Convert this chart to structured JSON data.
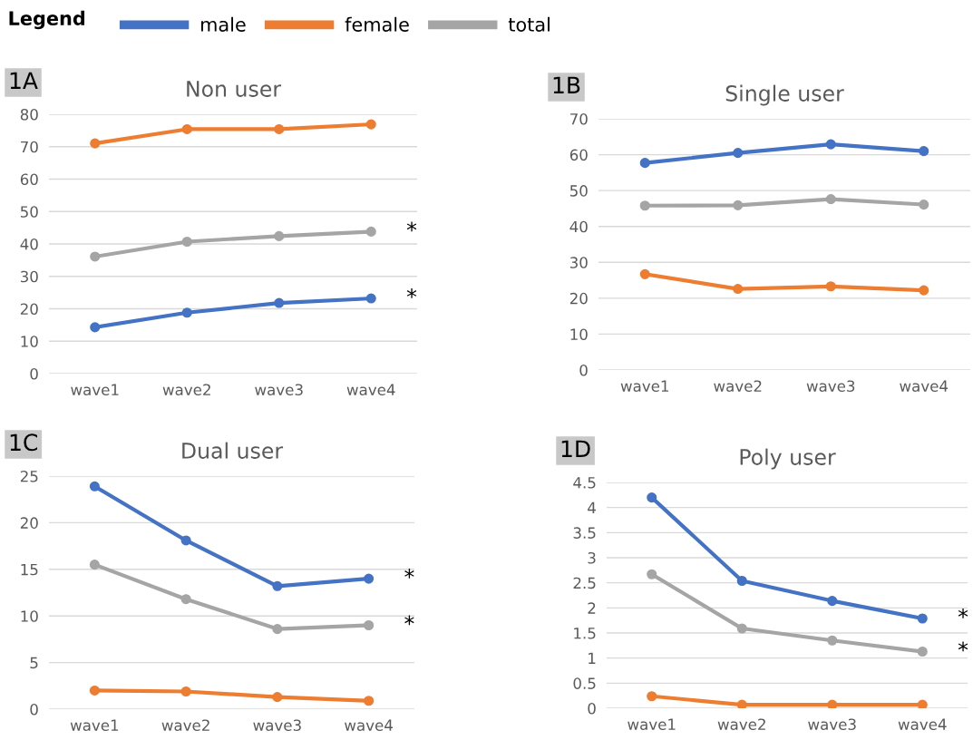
{
  "chart_data": [
    {
      "type": "line",
      "title": "Non user",
      "categories": [
        "wave1",
        "wave2",
        "wave3",
        "wave4"
      ],
      "ylim": [
        0,
        80
      ],
      "yticks": [
        0,
        10,
        20,
        30,
        40,
        50,
        60,
        70,
        80
      ],
      "grid": "y",
      "marker": "circle",
      "legend": "top",
      "legend_title": "Legend",
      "series": [
        {
          "name": "male",
          "color": "#4472c4",
          "values": [
            14.3,
            18.8,
            21.8,
            23.2
          ]
        },
        {
          "name": "female",
          "color": "#ed7d31",
          "values": [
            71.0,
            75.4,
            75.4,
            76.9
          ]
        },
        {
          "name": "total",
          "color": "#a5a5a5",
          "values": [
            36.1,
            40.7,
            42.4,
            43.8
          ]
        }
      ],
      "annotations": [
        "1A",
        {
          "text": "*",
          "x": "wave4",
          "y": 43.8
        },
        {
          "text": "*",
          "x": "wave4",
          "y": 23.2
        }
      ]
    },
    {
      "type": "line",
      "title": "Single user",
      "categories": [
        "wave1",
        "wave2",
        "wave3",
        "wave4"
      ],
      "ylim": [
        0,
        70
      ],
      "yticks": [
        0,
        10,
        20,
        30,
        40,
        50,
        60,
        70
      ],
      "grid": "y",
      "marker": "circle",
      "series": [
        {
          "color": "#4472c4",
          "values": [
            57.7,
            60.5,
            62.9,
            61.0
          ]
        },
        {
          "color": "#ed7d31",
          "values": [
            26.7,
            22.6,
            23.3,
            22.2
          ]
        },
        {
          "color": "#a5a5a5",
          "values": [
            45.8,
            45.9,
            47.6,
            46.1
          ]
        }
      ],
      "annotations": [
        "1B"
      ]
    },
    {
      "type": "line",
      "title": "Dual user",
      "categories": [
        "wave1",
        "wave2",
        "wave3",
        "wave4"
      ],
      "ylim": [
        0,
        25
      ],
      "yticks": [
        0,
        5,
        10,
        15,
        20,
        25
      ],
      "grid": "y",
      "marker": "circle",
      "series": [
        {
          "color": "#4472c4",
          "values": [
            23.9,
            18.1,
            13.2,
            14.0
          ]
        },
        {
          "color": "#ed7d31",
          "values": [
            2.0,
            1.9,
            1.3,
            0.9
          ]
        },
        {
          "color": "#a5a5a5",
          "values": [
            15.5,
            11.8,
            8.6,
            9.0
          ]
        }
      ],
      "annotations": [
        "1C",
        {
          "text": "*",
          "x": "wave4",
          "y": 14.0
        },
        {
          "text": "*",
          "x": "wave4",
          "y": 9.0
        }
      ]
    },
    {
      "type": "line",
      "title": "Poly user",
      "categories": [
        "wave1",
        "wave2",
        "wave3",
        "wave4"
      ],
      "ylim": [
        0,
        4.5
      ],
      "yticks": [
        0,
        0.5,
        1,
        1.5,
        2,
        2.5,
        3,
        3.5,
        4,
        4.5
      ],
      "grid": "y",
      "marker": "circle",
      "series": [
        {
          "color": "#4472c4",
          "values": [
            4.2,
            2.54,
            2.14,
            1.79
          ]
        },
        {
          "color": "#ed7d31",
          "values": [
            0.24,
            0.07,
            0.07,
            0.07
          ]
        },
        {
          "color": "#a5a5a5",
          "values": [
            2.67,
            1.59,
            1.35,
            1.13
          ]
        }
      ],
      "annotations": [
        "1D",
        {
          "text": "*",
          "x": "wave4",
          "y": 1.79
        },
        {
          "text": "*",
          "x": "wave4",
          "y": 1.13
        }
      ]
    }
  ]
}
